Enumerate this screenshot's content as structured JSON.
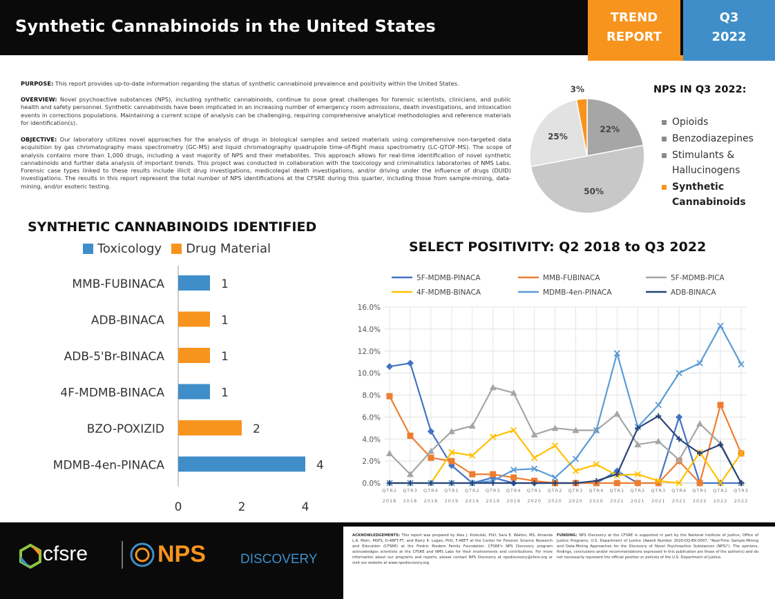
{
  "header": {
    "title": "Synthetic Cannabinoids in the United States",
    "trend_line1": "TREND",
    "trend_line2": "REPORT",
    "quarter_line1": "Q3",
    "quarter_line2": "2022"
  },
  "text": {
    "purpose_label": "PURPOSE:",
    "purpose": " This report provides up-to-date information regarding the status of synthetic cannabinoid prevalence and positivity within the United States.",
    "overview_label": "OVERVIEW:",
    "overview": " Novel psychoactive substances (NPS), including synthetic cannabinoids, continue to pose great challenges for forensic scientists, clinicians, and public health and safety personnel. Synthetic cannabinoids have been implicated in an increasing number of emergency room admissions, death investigations, and intoxication events in corrections populations. Maintaining a current scope of analysis can be challenging, requiring comprehensive analytical methodologies and reference materials for identification(s).",
    "objective_label": "OBJECTIVE:",
    "objective": " Our laboratory utilizes novel approaches for the analysis of drugs in biological samples and seized materials using comprehensive non-targeted data acquisition by gas chromatography mass spectrometry (GC-MS) and liquid chromatography quadrupole time-of-flight mass spectrometry (LC-QTOF-MS). The scope of analysis contains more than 1,000 drugs, including a vast majority of NPS and their metabolites. This approach allows for real-time identification of novel synthetic cannabinoids and further data analysis of important trends. This project was conducted in collaboration with the toxicology and criminalistics laboratories of NMS Labs. Forensic case types linked to these results include illicit drug investigations, medicolegal death investigations, and/or driving under the influence of drugs (DUID) investigations. The results in this report represent the total number of NPS identifications at the CFSRE during this quarter, including those from sample-mining, data-mining, and/or esoteric testing."
  },
  "colors": {
    "orange": "#f7941d",
    "blue": "#3f8ec9",
    "dark": "#0a0a0a",
    "pie_opioids": "#a6a6a6",
    "pie_benzo": "#c8c8c8",
    "pie_stim": "#e2e2e2"
  },
  "chart_data": [
    {
      "type": "pie",
      "title": "NPS IN Q3 2022:",
      "slices": [
        {
          "label": "Opioids",
          "value": 22,
          "display": "22%",
          "color": "#a6a6a6"
        },
        {
          "label": "Benzodiazepines",
          "value": 50,
          "display": "50%",
          "color": "#c8c8c8"
        },
        {
          "label": "Stimulants & Hallucinogens",
          "value": 25,
          "display": "25%",
          "color": "#e2e2e2"
        },
        {
          "label": "Synthetic Cannabinoids",
          "value": 3,
          "display": "3%",
          "color": "#f7941d"
        }
      ],
      "legend": [
        {
          "line1": "Opioids",
          "line2": "",
          "color": "#a6a6a6"
        },
        {
          "line1": "Benzodiazepines",
          "line2": "",
          "color": "#c8c8c8"
        },
        {
          "line1": "Stimulants &",
          "line2": "Hallucinogens",
          "color": "#e2e2e2"
        },
        {
          "line1": "Synthetic",
          "line2": "Cannabinoids",
          "color": "#f7941d"
        }
      ]
    },
    {
      "type": "bar",
      "orientation": "horizontal",
      "title": "SYNTHETIC CANNABINOIDS IDENTIFIED",
      "legend": [
        {
          "name": "Toxicology",
          "color": "#3f8ec9"
        },
        {
          "name": "Drug Material",
          "color": "#f7941d"
        }
      ],
      "categories": [
        "MMB-FUBINACA",
        "ADB-BINACA",
        "ADB-5'Br-BINACA",
        "4F-MDMB-BINACA",
        "BZO-POXIZID",
        "MDMB-4en-PINACA"
      ],
      "values": [
        1,
        1,
        1,
        1,
        2,
        4
      ],
      "source": [
        "Toxicology",
        "Drug Material",
        "Drug Material",
        "Toxicology",
        "Drug Material",
        "Toxicology"
      ],
      "xticks": [
        "0",
        "2",
        "4"
      ],
      "xlim": [
        0,
        4
      ]
    },
    {
      "type": "line",
      "title": "SELECT POSITIVITY: Q2 2018 to Q3 2022",
      "x_top": [
        "QTR2",
        "QTR3",
        "QTR4",
        "QTR1",
        "QTR2",
        "QTR3",
        "QTR4",
        "QTR1",
        "QTR2",
        "QTR3",
        "QTR4",
        "QTR1",
        "QTR2",
        "QTR3",
        "QTR4",
        "QTR1",
        "QTR2",
        "QTR3"
      ],
      "x_bottom": [
        "2018",
        "2018",
        "2018",
        "2019",
        "2019",
        "2019",
        "2019",
        "2020",
        "2020",
        "2020",
        "2020",
        "2021",
        "2021",
        "2021",
        "2021",
        "2022",
        "2022",
        "2022"
      ],
      "yticks": [
        "0.0%",
        "2.0%",
        "4.0%",
        "6.0%",
        "8.0%",
        "10.0%",
        "12.0%",
        "14.0%",
        "16.0%"
      ],
      "ylim": [
        0,
        16
      ],
      "series": [
        {
          "name": "5F-MDMB-PINACA",
          "color": "#4472c4",
          "marker": "diamond",
          "values": [
            10.6,
            10.9,
            4.7,
            1.6,
            0,
            0.5,
            0,
            0,
            0,
            0,
            0,
            1.1,
            0,
            0,
            6.0,
            0,
            0,
            0
          ]
        },
        {
          "name": "MMB-FUBINACA",
          "color": "#ed7d31",
          "marker": "square",
          "values": [
            7.9,
            4.3,
            2.3,
            2.0,
            0.8,
            0.8,
            0.5,
            0.2,
            0,
            0,
            0,
            0,
            0,
            0,
            2.0,
            0,
            7.1,
            2.7
          ]
        },
        {
          "name": "5F-MDMB-PICA",
          "color": "#a5a5a5",
          "marker": "triangle",
          "values": [
            2.7,
            0.8,
            2.9,
            4.7,
            5.2,
            8.7,
            8.2,
            4.4,
            5.0,
            4.8,
            4.8,
            6.3,
            3.5,
            3.8,
            2.1,
            5.4,
            3.6,
            0
          ]
        },
        {
          "name": "4F-MDMB-BINACA",
          "color": "#ffc000",
          "marker": "x",
          "values": [
            0,
            0,
            0,
            2.8,
            2.5,
            4.2,
            4.8,
            2.3,
            3.4,
            1.1,
            1.7,
            0.7,
            0.8,
            0.2,
            0,
            2.8,
            0,
            2.7
          ]
        },
        {
          "name": "MDMB-4en-PINACA",
          "color": "#5b9bd5",
          "marker": "x",
          "values": [
            0,
            0,
            0,
            0,
            0,
            0.2,
            1.2,
            1.3,
            0.5,
            2.2,
            4.8,
            11.8,
            5.1,
            7.1,
            10.0,
            10.9,
            14.3,
            10.8
          ]
        },
        {
          "name": "ADB-BINACA",
          "color": "#264478",
          "marker": "plus",
          "values": [
            0,
            0,
            0,
            0,
            0,
            0,
            0,
            0,
            0,
            0,
            0.2,
            0.8,
            5.0,
            6.1,
            4.0,
            2.7,
            3.5,
            0
          ]
        }
      ]
    }
  ],
  "footer": {
    "brand1": "cfsre",
    "brand2": "NPS",
    "brand3": "DISCOVERY",
    "ack_label": "ACKNOWLEDGEMENTS:",
    "ack": " This report was prepared by Alex J. Krotulski, PhD, Sara E. Walton, MS, Amanda L.A. Mohr, MSFS, D-ABFT-FT, and Barry K. Logan, PhD, F-ABFT at the Center for Forensic Science Research and Education (CFSRE) at the Fredric Rieders Family Foundation. CFSRE's NPS Discovery program acknowledges scientists at the CFSRE and NMS Labs for their involvements and contributions. For more information about our programs and reports, please contact NPS Discovery at npsdiscovery@cfsre.org or visit our website at www.npsdiscovery.org.",
    "funding_label": "FUNDING:",
    "funding": " NPS Discovery at the CFSRE is supported in part by the National Institute of Justice, Office of Justice Programs, U.S. Department of Justice (Award Number 2020-DQ-BX-0007, \"Real-Time Sample-Mining and Data-Mining Approaches for the Discovery of Novel Psychoactive Substances (NPS)\"). The opinions, findings, conclusions and/or recommendations expressed in this publication are those of the author(s) and do not necessarily represent the official position or policies of the U.S. Department of Justice."
  }
}
